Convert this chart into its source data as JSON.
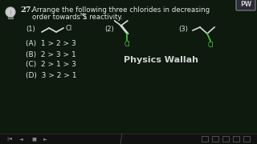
{
  "background_color": "#0d1a0d",
  "bg_gradient": true,
  "title_num": "27.",
  "title_text": "Arrange the following three chlorides in decreasing",
  "title_line2": "order towards S",
  "title_sub": "N",
  "title_line2c": "1 reactivity.",
  "watermark": "Physics Wallah",
  "options": [
    "(A)  1 > 2 > 3",
    "(B)  2 > 3 > 1",
    "(C)  2 > 1 > 3",
    "(D)  3 > 2 > 1"
  ],
  "label1": "(1)",
  "label2": "(2)",
  "label3": "(3)",
  "text_color": "#e8e8e8",
  "chalk_color": "#d8d8d8",
  "green_color": "#44cc44",
  "logo_bg": "#2a2a3a",
  "logo_border": "#888888",
  "nav_bg": "#111111"
}
